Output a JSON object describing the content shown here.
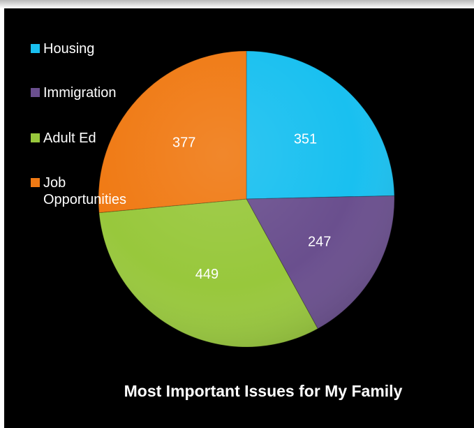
{
  "chart_data": {
    "type": "pie",
    "title": "Most Important Issues for  My Family",
    "legend_position": "top-left",
    "slices": [
      {
        "label": "Housing",
        "value": 351,
        "color": "#19c0f0"
      },
      {
        "label": "Immigration",
        "value": 247,
        "color": "#6a4f8e"
      },
      {
        "label": "Adult Ed",
        "value": 449,
        "color": "#98c83c"
      },
      {
        "label": "Job Opportunities",
        "value": 377,
        "color": "#f07a14"
      }
    ]
  }
}
